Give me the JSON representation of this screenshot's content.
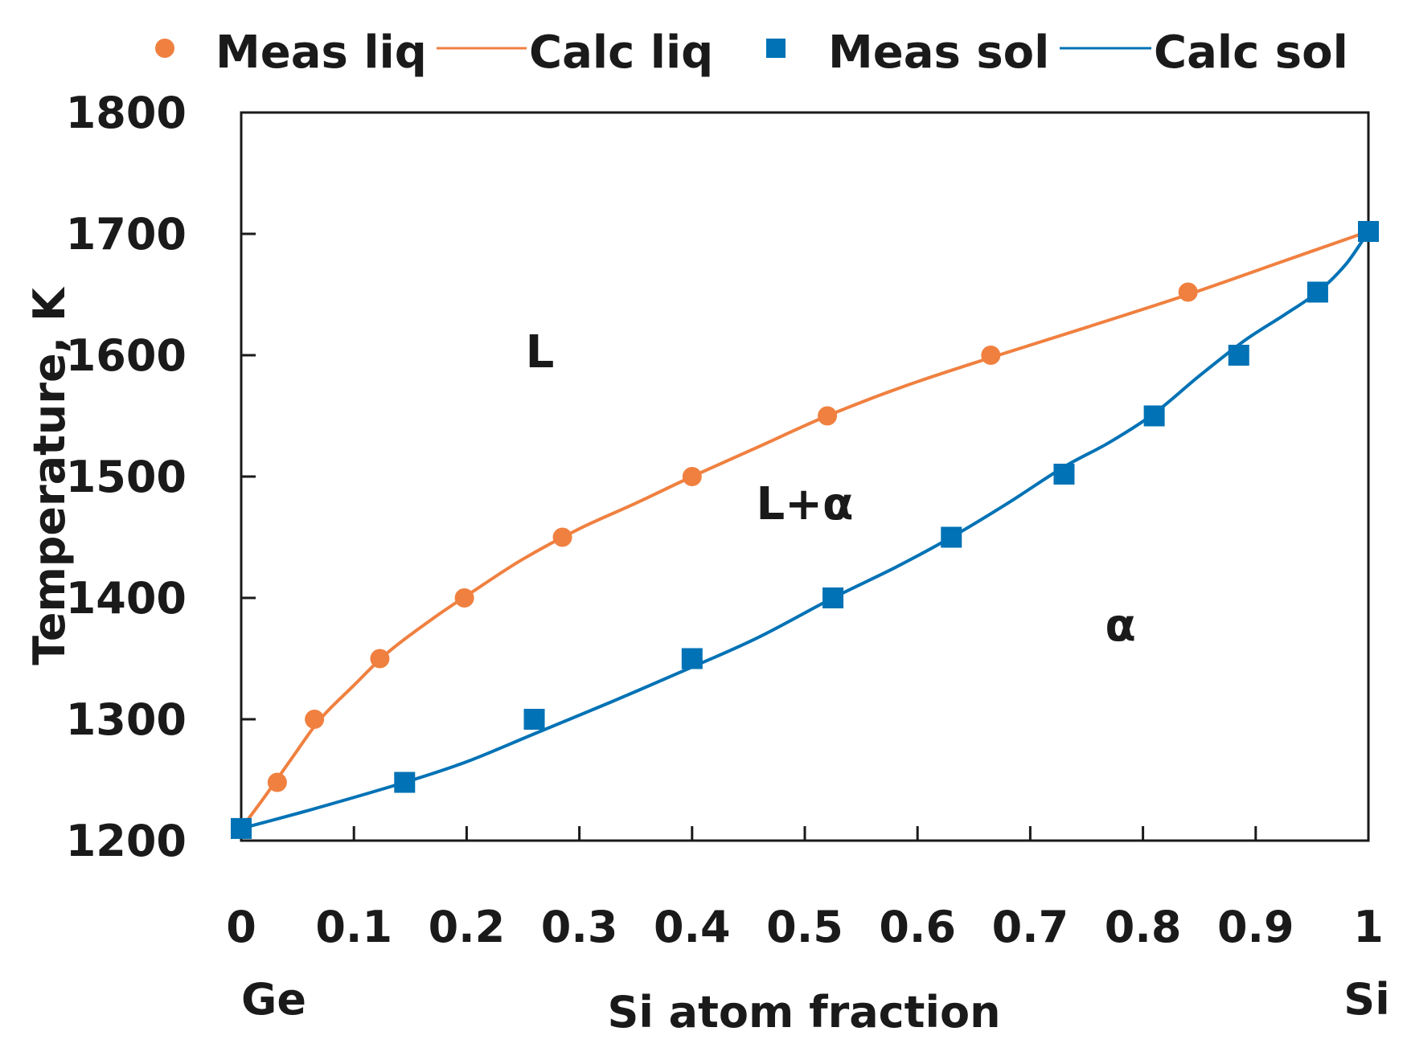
{
  "chart_data": {
    "type": "line",
    "title": "",
    "xlabel": "Si atom fraction",
    "ylabel": "Temperature, K",
    "xlim": [
      0,
      1
    ],
    "ylim": [
      1200,
      1800
    ],
    "x_ticks": [
      0,
      0.1,
      0.2,
      0.3,
      0.4,
      0.5,
      0.6,
      0.7,
      0.8,
      0.9,
      1
    ],
    "x_tick_labels": [
      "0",
      "0.1",
      "0.2",
      "0.3",
      "0.4",
      "0.5",
      "0.6",
      "0.7",
      "0.8",
      "0.9",
      "1"
    ],
    "y_ticks": [
      1200,
      1300,
      1400,
      1500,
      1600,
      1700,
      1800
    ],
    "y_tick_labels": [
      "1200",
      "1300",
      "1400",
      "1500",
      "1600",
      "1700",
      "1800"
    ],
    "x_end_labels": {
      "left": "Ge",
      "right": "Si"
    },
    "grid": false,
    "legend_position": "top",
    "colors": {
      "liquidus": "#f08040",
      "solidus": "#0072b5",
      "axis": "#1a1a1a",
      "text": "#1a1a1a"
    },
    "series": [
      {
        "name": "Meas liq",
        "kind": "marker",
        "marker": "circle",
        "color": "#f08040",
        "points": [
          {
            "x": 0.0,
            "y": 1210
          },
          {
            "x": 0.032,
            "y": 1248
          },
          {
            "x": 0.065,
            "y": 1300
          },
          {
            "x": 0.123,
            "y": 1350
          },
          {
            "x": 0.198,
            "y": 1400
          },
          {
            "x": 0.285,
            "y": 1450
          },
          {
            "x": 0.4,
            "y": 1500
          },
          {
            "x": 0.52,
            "y": 1550
          },
          {
            "x": 0.665,
            "y": 1600
          },
          {
            "x": 0.84,
            "y": 1652
          },
          {
            "x": 1.0,
            "y": 1702
          }
        ]
      },
      {
        "name": "Calc liq",
        "kind": "line",
        "color": "#f08040",
        "points": [
          {
            "x": 0.0,
            "y": 1210
          },
          {
            "x": 0.02,
            "y": 1235
          },
          {
            "x": 0.045,
            "y": 1268
          },
          {
            "x": 0.07,
            "y": 1300
          },
          {
            "x": 0.1,
            "y": 1328
          },
          {
            "x": 0.13,
            "y": 1355
          },
          {
            "x": 0.17,
            "y": 1383
          },
          {
            "x": 0.21,
            "y": 1408
          },
          {
            "x": 0.25,
            "y": 1432
          },
          {
            "x": 0.3,
            "y": 1457
          },
          {
            "x": 0.35,
            "y": 1478
          },
          {
            "x": 0.4,
            "y": 1500
          },
          {
            "x": 0.46,
            "y": 1525
          },
          {
            "x": 0.52,
            "y": 1550
          },
          {
            "x": 0.59,
            "y": 1575
          },
          {
            "x": 0.665,
            "y": 1598
          },
          {
            "x": 0.75,
            "y": 1623
          },
          {
            "x": 0.84,
            "y": 1650
          },
          {
            "x": 0.92,
            "y": 1676
          },
          {
            "x": 1.0,
            "y": 1702
          }
        ]
      },
      {
        "name": "Meas sol",
        "kind": "marker",
        "marker": "square",
        "color": "#0072b5",
        "points": [
          {
            "x": 0.0,
            "y": 1210
          },
          {
            "x": 0.145,
            "y": 1248
          },
          {
            "x": 0.26,
            "y": 1300
          },
          {
            "x": 0.4,
            "y": 1350
          },
          {
            "x": 0.525,
            "y": 1400
          },
          {
            "x": 0.63,
            "y": 1450
          },
          {
            "x": 0.73,
            "y": 1502
          },
          {
            "x": 0.81,
            "y": 1550
          },
          {
            "x": 0.885,
            "y": 1600
          },
          {
            "x": 0.955,
            "y": 1652
          },
          {
            "x": 1.0,
            "y": 1702
          }
        ]
      },
      {
        "name": "Calc sol",
        "kind": "line",
        "color": "#0072b5",
        "points": [
          {
            "x": 0.0,
            "y": 1210
          },
          {
            "x": 0.06,
            "y": 1225
          },
          {
            "x": 0.145,
            "y": 1248
          },
          {
            "x": 0.2,
            "y": 1265
          },
          {
            "x": 0.26,
            "y": 1288
          },
          {
            "x": 0.33,
            "y": 1315
          },
          {
            "x": 0.4,
            "y": 1343
          },
          {
            "x": 0.46,
            "y": 1368
          },
          {
            "x": 0.525,
            "y": 1400
          },
          {
            "x": 0.58,
            "y": 1425
          },
          {
            "x": 0.63,
            "y": 1450
          },
          {
            "x": 0.68,
            "y": 1478
          },
          {
            "x": 0.73,
            "y": 1508
          },
          {
            "x": 0.77,
            "y": 1528
          },
          {
            "x": 0.81,
            "y": 1552
          },
          {
            "x": 0.85,
            "y": 1583
          },
          {
            "x": 0.89,
            "y": 1612
          },
          {
            "x": 0.925,
            "y": 1633
          },
          {
            "x": 0.955,
            "y": 1652
          },
          {
            "x": 0.98,
            "y": 1675
          },
          {
            "x": 1.0,
            "y": 1702
          }
        ]
      }
    ],
    "annotations": [
      {
        "text": "L",
        "x": 0.265,
        "y": 1590
      },
      {
        "text": "L+α",
        "x": 0.5,
        "y": 1465
      },
      {
        "text": "α",
        "x": 0.78,
        "y": 1365
      }
    ]
  }
}
